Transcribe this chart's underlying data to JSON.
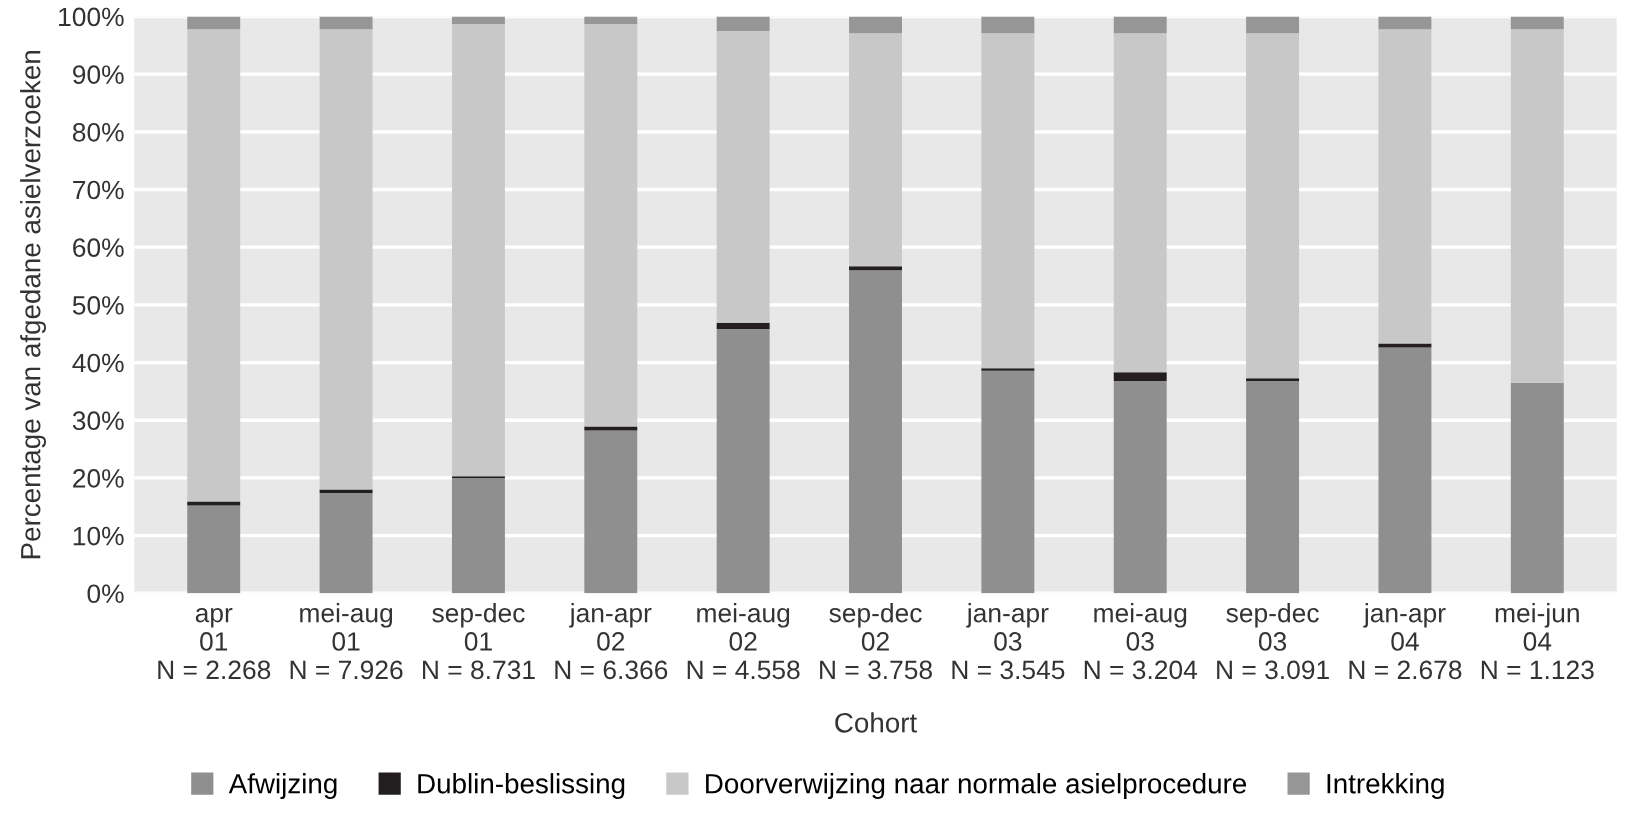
{
  "chart_data": {
    "type": "bar",
    "stacked": true,
    "xlabel": "Cohort",
    "ylabel": "Percentage van afgedane asielverzoeken",
    "categories": [
      "apr\n01\nN = 2.268",
      "mei-aug\n01\nN = 7.926",
      "sep-dec\n01\nN = 8.731",
      "jan-apr\n02\nN = 6.366",
      "mei-aug\n02\nN = 4.558",
      "sep-dec\n02\nN = 3.758",
      "jan-apr\n03\nN = 3.545",
      "mei-aug\n03\nN = 3.204",
      "sep-dec\n03\nN = 3.091",
      "jan-apr\n04\nN = 2.678",
      "mei-jun\n04\nN = 1.123"
    ],
    "series": [
      {
        "name": "Afwijzing",
        "color": "#8f8f8f",
        "values": [
          15.2,
          17.4,
          20.0,
          28.2,
          45.8,
          56.0,
          38.6,
          36.8,
          36.8,
          42.6,
          36.5
        ]
      },
      {
        "name": "Dublin-beslissing",
        "color": "#231f20",
        "values": [
          0.7,
          0.6,
          0.3,
          0.7,
          1.1,
          0.7,
          0.4,
          1.5,
          0.5,
          0.7,
          0
        ]
      },
      {
        "name": "Doorverwijzing naar normale asielprocedure",
        "color": "#c8c8c8",
        "values": [
          81.9,
          79.8,
          78.4,
          69.8,
          50.6,
          40.4,
          58.1,
          58.8,
          59.8,
          54.5,
          61.3
        ]
      },
      {
        "name": "Intrekking",
        "color": "#969696",
        "values": [
          2.2,
          2.2,
          1.3,
          1.3,
          2.5,
          2.9,
          2.9,
          2.9,
          2.9,
          2.2,
          2.2
        ]
      }
    ],
    "ylim": [
      0,
      100
    ],
    "yticks": [
      {
        "value": 0,
        "label": "0%"
      },
      {
        "value": 10,
        "label": "10%"
      },
      {
        "value": 20,
        "label": "20%"
      },
      {
        "value": 30,
        "label": "30%"
      },
      {
        "value": 40,
        "label": "40%"
      },
      {
        "value": 50,
        "label": "50%"
      },
      {
        "value": 60,
        "label": "60%"
      },
      {
        "value": 70,
        "label": "70%"
      },
      {
        "value": 80,
        "label": "80%"
      },
      {
        "value": 90,
        "label": "90%"
      },
      {
        "value": 100,
        "label": "100%"
      }
    ],
    "grid": "y",
    "legend": "bottom"
  }
}
